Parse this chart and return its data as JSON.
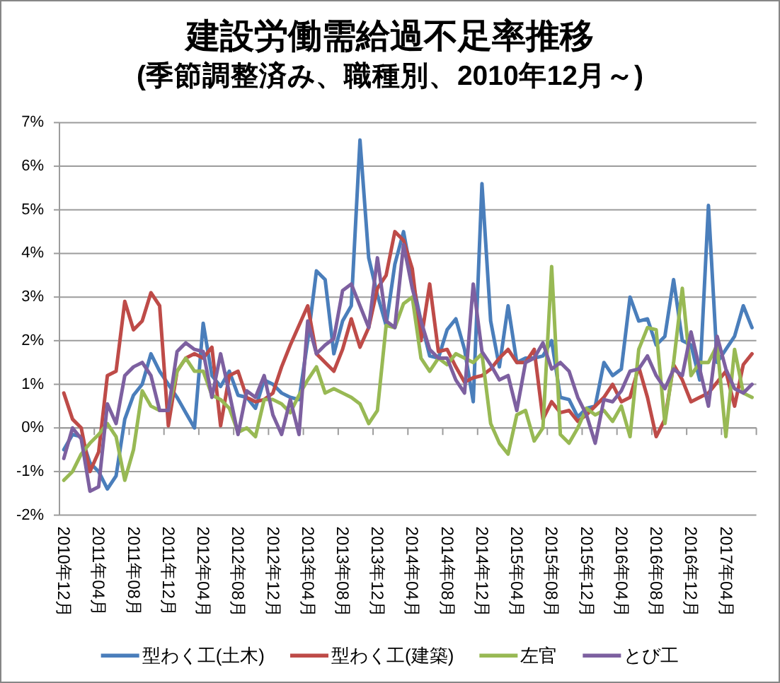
{
  "chart_data": {
    "type": "line",
    "title": "建設労働需給過不足率推移",
    "subtitle": "(季節調整済み、職種別、2010年12月～)",
    "categories": [
      "2010年12月",
      null,
      null,
      null,
      "2011年04月",
      null,
      null,
      null,
      "2011年08月",
      null,
      null,
      null,
      "2011年12月",
      null,
      null,
      null,
      "2012年04月",
      null,
      null,
      null,
      "2012年08月",
      null,
      null,
      null,
      "2012年12月",
      null,
      null,
      null,
      "2013年04月",
      null,
      null,
      null,
      "2013年08月",
      null,
      null,
      null,
      "2013年12月",
      null,
      null,
      null,
      "2014年04月",
      null,
      null,
      null,
      "2014年08月",
      null,
      null,
      null,
      "2014年12月",
      null,
      null,
      null,
      "2015年04月",
      null,
      null,
      null,
      "2015年08月",
      null,
      null,
      null,
      "2015年12月",
      null,
      null,
      null,
      "2016年04月",
      null,
      null,
      null,
      "2016年08月",
      null,
      null,
      null,
      "2016年12月",
      null,
      null,
      null,
      "2017年04月",
      null,
      null,
      null
    ],
    "series": [
      {
        "name": "型わく工(土木)",
        "color": "#4a7ebb",
        "values": [
          -0.5,
          -0.15,
          -0.2,
          -0.8,
          -1.0,
          -1.4,
          -1.1,
          0.2,
          0.75,
          1.0,
          1.7,
          1.3,
          1.0,
          0.7,
          0.35,
          0.0,
          2.4,
          1.2,
          0.95,
          1.3,
          0.75,
          0.7,
          0.45,
          1.1,
          1.0,
          0.8,
          0.7,
          0.65,
          2.0,
          3.6,
          3.4,
          1.7,
          2.45,
          2.8,
          6.6,
          3.9,
          3.05,
          2.35,
          3.75,
          4.5,
          3.4,
          2.45,
          1.65,
          1.6,
          2.25,
          2.5,
          1.8,
          0.6,
          5.6,
          2.45,
          1.4,
          2.8,
          1.5,
          1.6,
          1.6,
          1.65,
          2.0,
          0.7,
          0.65,
          0.25,
          0.45,
          0.5,
          1.5,
          1.2,
          1.35,
          3.0,
          2.45,
          2.5,
          1.9,
          2.1,
          3.4,
          2.0,
          1.9,
          1.1,
          5.1,
          1.5,
          1.8,
          2.1,
          2.8,
          2.3
        ]
      },
      {
        "name": "型わく工(建築)",
        "color": "#be4b48",
        "values": [
          0.8,
          0.2,
          0.0,
          -1.0,
          -0.55,
          1.2,
          1.3,
          2.9,
          2.25,
          2.45,
          3.1,
          2.8,
          0.05,
          1.3,
          1.6,
          1.7,
          1.6,
          1.85,
          0.05,
          1.2,
          1.3,
          0.7,
          0.6,
          0.65,
          0.8,
          1.4,
          1.9,
          2.35,
          2.8,
          1.7,
          1.5,
          1.3,
          1.8,
          2.5,
          1.85,
          2.3,
          3.2,
          3.5,
          4.5,
          4.3,
          3.65,
          2.0,
          3.3,
          1.75,
          1.8,
          1.4,
          1.05,
          1.15,
          1.2,
          1.35,
          1.6,
          1.8,
          1.5,
          1.5,
          1.8,
          0.2,
          0.6,
          0.35,
          0.4,
          0.15,
          0.3,
          0.5,
          0.7,
          1.0,
          0.6,
          0.7,
          1.4,
          0.7,
          -0.2,
          0.2,
          1.45,
          1.1,
          0.6,
          0.7,
          0.8,
          1.05,
          1.3,
          0.5,
          1.45,
          1.7
        ]
      },
      {
        "name": "左官",
        "color": "#98b954",
        "values": [
          -1.2,
          -1.0,
          -0.6,
          -0.35,
          -0.15,
          0.1,
          -0.2,
          -1.2,
          -0.5,
          0.85,
          0.5,
          0.4,
          0.4,
          1.3,
          1.6,
          1.3,
          1.3,
          0.75,
          0.65,
          0.45,
          -0.1,
          0.0,
          -0.2,
          0.65,
          0.65,
          0.55,
          0.35,
          0.75,
          1.1,
          1.4,
          0.8,
          0.9,
          0.8,
          0.7,
          0.55,
          0.1,
          0.4,
          2.35,
          2.3,
          2.85,
          3.0,
          1.6,
          1.3,
          1.6,
          1.45,
          1.7,
          1.6,
          1.5,
          1.7,
          0.1,
          -0.35,
          -0.6,
          0.3,
          0.4,
          -0.3,
          0.0,
          3.7,
          -0.15,
          -0.35,
          0.0,
          0.45,
          0.3,
          0.4,
          0.15,
          0.5,
          -0.2,
          1.8,
          2.3,
          2.25,
          0.1,
          1.5,
          3.2,
          1.2,
          1.5,
          1.5,
          1.9,
          -0.2,
          1.8,
          0.8,
          0.7
        ]
      },
      {
        "name": "とび工",
        "color": "#7d60a0",
        "values": [
          -0.7,
          0.0,
          -0.25,
          -1.45,
          -1.35,
          0.55,
          0.1,
          1.2,
          1.4,
          1.5,
          1.2,
          0.4,
          0.4,
          1.75,
          1.95,
          1.8,
          1.75,
          0.7,
          1.7,
          0.8,
          -0.15,
          0.85,
          0.7,
          1.2,
          0.3,
          -0.15,
          0.65,
          -0.15,
          2.45,
          1.7,
          1.9,
          2.05,
          3.15,
          3.3,
          2.8,
          2.3,
          3.9,
          2.45,
          2.3,
          4.2,
          3.2,
          2.45,
          1.8,
          1.6,
          1.6,
          1.1,
          0.8,
          3.3,
          1.75,
          1.45,
          1.1,
          1.2,
          0.4,
          1.5,
          1.6,
          1.95,
          1.35,
          1.5,
          1.3,
          0.7,
          0.3,
          -0.35,
          0.65,
          0.6,
          0.85,
          1.3,
          1.35,
          1.65,
          1.2,
          0.9,
          1.35,
          1.2,
          2.2,
          1.35,
          0.5,
          2.1,
          1.35,
          0.9,
          0.8,
          1.0
        ]
      }
    ],
    "ylim": [
      -2,
      7
    ],
    "yticks": [
      {
        "value": -2,
        "label": "-2%"
      },
      {
        "value": -1,
        "label": "-1%"
      },
      {
        "value": 0,
        "label": "0%"
      },
      {
        "value": 1,
        "label": "1%"
      },
      {
        "value": 2,
        "label": "2%"
      },
      {
        "value": 3,
        "label": "3%"
      },
      {
        "value": 4,
        "label": "4%"
      },
      {
        "value": 5,
        "label": "5%"
      },
      {
        "value": 6,
        "label": "6%"
      },
      {
        "value": 7,
        "label": "7%"
      }
    ],
    "grid": "y",
    "legend": "bottom"
  }
}
